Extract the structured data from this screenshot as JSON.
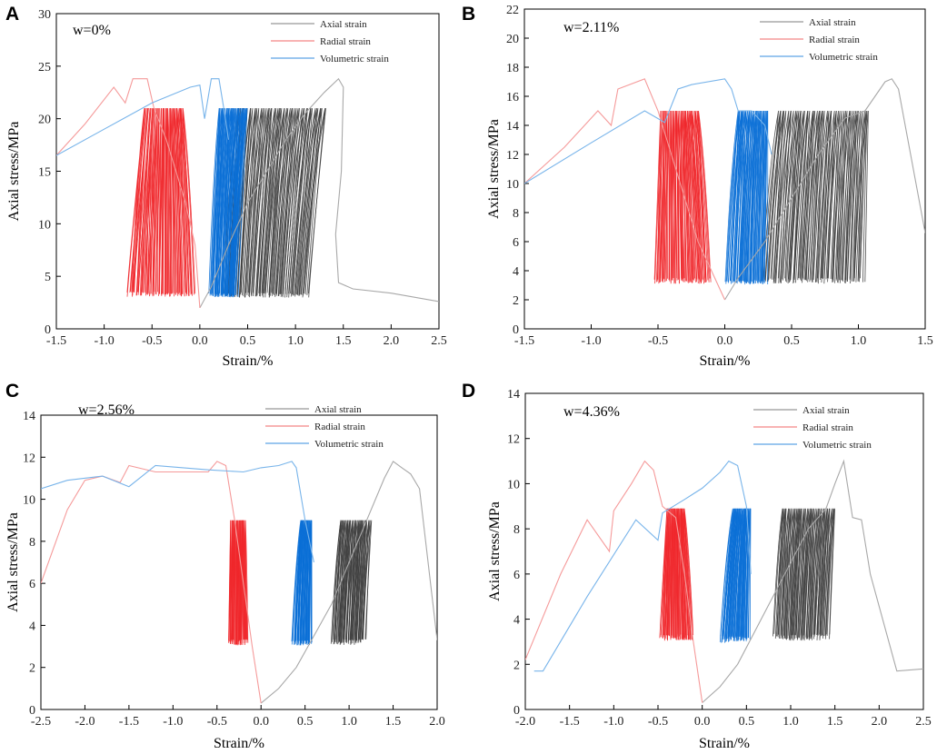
{
  "figure": {
    "x_axis_label": "Strain/%",
    "y_axis_label": "Axial stress/MPa"
  },
  "colors": {
    "axial": "#3c3c3c",
    "radial": "#f0262a",
    "volumetric": "#0a6fd6",
    "axial_light": "#a8a8a8",
    "radial_light": "#f59a9a",
    "volumetric_light": "#78b4ea"
  },
  "chart_data": [
    {
      "panel": "A",
      "type": "line",
      "annotation": "w=0%",
      "xlim": [
        -1.5,
        2.5
      ],
      "ylim": [
        0,
        30
      ],
      "xticks": [
        -1.5,
        -1.0,
        -0.5,
        0.0,
        0.5,
        1.0,
        1.5,
        2.0,
        2.5
      ],
      "yticks": [
        0,
        5,
        10,
        15,
        20,
        25,
        30
      ],
      "legend": [
        "Axial strain",
        "Radial strain",
        "Volumetric strain"
      ],
      "series": [
        {
          "name": "Axial strain",
          "x": [
            0.0,
            0.12,
            0.3,
            0.5,
            0.7,
            0.9,
            1.1,
            1.3,
            1.45,
            1.5,
            1.48,
            1.42,
            1.45,
            1.6,
            2.0,
            2.5
          ],
          "y": [
            2.0,
            4.0,
            8.0,
            12.0,
            15.0,
            18.0,
            20.5,
            22.5,
            23.8,
            23.0,
            15.0,
            9.0,
            4.4,
            3.8,
            3.4,
            2.6
          ]
        },
        {
          "name": "Radial strain",
          "x": [
            -1.5,
            -1.2,
            -0.9,
            -0.78,
            -0.7,
            -0.62,
            -0.55,
            -0.48,
            -0.35,
            -0.25,
            -0.15,
            -0.05,
            0.0
          ],
          "y": [
            16.5,
            19.5,
            23.0,
            21.5,
            23.8,
            23.8,
            23.8,
            21.0,
            18.0,
            15.0,
            12.0,
            8.0,
            2.0
          ]
        },
        {
          "name": "Volumetric strain",
          "x": [
            -1.5,
            -1.0,
            -0.5,
            -0.1,
            0.0,
            0.05,
            0.12,
            0.2,
            0.25,
            0.3
          ],
          "y": [
            16.5,
            19.0,
            21.5,
            23.0,
            23.2,
            20.0,
            23.8,
            23.8,
            21.0,
            18.0
          ]
        }
      ]
    },
    {
      "panel": "B",
      "type": "line",
      "annotation": "w=2.11%",
      "xlim": [
        -1.5,
        1.5
      ],
      "ylim": [
        0,
        22
      ],
      "xticks": [
        -1.5,
        -1.0,
        -0.5,
        0.0,
        0.5,
        1.0,
        1.5
      ],
      "yticks": [
        0,
        2,
        4,
        6,
        8,
        10,
        12,
        14,
        16,
        18,
        20,
        22
      ],
      "legend": [
        "Axial strain",
        "Radial strain",
        "Volumetric strain"
      ],
      "series": [
        {
          "name": "Axial strain",
          "x": [
            0.0,
            0.1,
            0.3,
            0.5,
            0.7,
            0.9,
            1.05,
            1.2,
            1.25,
            1.3,
            1.35,
            1.5
          ],
          "y": [
            2.0,
            3.5,
            6.0,
            9.0,
            12.0,
            14.5,
            15.0,
            17.0,
            17.2,
            16.5,
            14.0,
            6.6
          ]
        },
        {
          "name": "Radial strain",
          "x": [
            -1.5,
            -1.2,
            -0.95,
            -0.85,
            -0.8,
            -0.6,
            -0.5,
            -0.4,
            -0.3,
            -0.2,
            -0.1,
            0.0
          ],
          "y": [
            10.0,
            12.5,
            15.0,
            14.0,
            16.5,
            17.2,
            15.0,
            12.0,
            9.0,
            6.0,
            4.0,
            2.0
          ]
        },
        {
          "name": "Volumetric strain",
          "x": [
            -1.5,
            -1.0,
            -0.6,
            -0.45,
            -0.35,
            -0.25,
            0.0,
            0.05,
            0.1,
            0.2,
            0.3,
            0.35
          ],
          "y": [
            10.0,
            12.8,
            15.0,
            14.2,
            16.5,
            16.8,
            17.2,
            16.5,
            15.0,
            15.0,
            14.0,
            12.0
          ]
        }
      ]
    },
    {
      "panel": "C",
      "type": "line",
      "annotation": "w=2.56%",
      "xlim": [
        -2.5,
        2.0
      ],
      "ylim": [
        0,
        14
      ],
      "xticks": [
        -2.5,
        -2.0,
        -1.5,
        -1.0,
        -0.5,
        0.0,
        0.5,
        1.0,
        1.5,
        2.0
      ],
      "yticks": [
        0,
        2,
        4,
        6,
        8,
        10,
        12,
        14
      ],
      "legend": [
        "Axial strain",
        "Radial strain",
        "Volumetric strain"
      ],
      "series": [
        {
          "name": "Axial strain",
          "x": [
            0.0,
            0.2,
            0.4,
            0.6,
            0.8,
            1.0,
            1.2,
            1.4,
            1.5,
            1.6,
            1.7,
            1.8,
            2.0
          ],
          "y": [
            0.3,
            1.0,
            2.0,
            3.5,
            5.0,
            7.0,
            9.0,
            11.0,
            11.8,
            11.5,
            11.2,
            10.5,
            3.3
          ]
        },
        {
          "name": "Radial strain",
          "x": [
            -2.5,
            -2.2,
            -2.0,
            -1.8,
            -1.6,
            -1.5,
            -1.2,
            -0.6,
            -0.5,
            -0.4,
            -0.3,
            -0.2,
            -0.1,
            0.0
          ],
          "y": [
            6.0,
            9.5,
            10.9,
            11.1,
            10.8,
            11.6,
            11.3,
            11.3,
            11.8,
            11.6,
            9.0,
            6.0,
            3.0,
            0.3
          ]
        },
        {
          "name": "Volumetric strain",
          "x": [
            -2.5,
            -2.2,
            -1.8,
            -1.5,
            -1.2,
            -0.6,
            -0.2,
            0.0,
            0.2,
            0.35,
            0.4,
            0.5,
            0.6
          ],
          "y": [
            10.5,
            10.9,
            11.1,
            10.6,
            11.6,
            11.4,
            11.3,
            11.5,
            11.6,
            11.8,
            11.5,
            9.0,
            7.0
          ]
        }
      ]
    },
    {
      "panel": "D",
      "type": "line",
      "annotation": "w=4.36%",
      "xlim": [
        -2.0,
        2.5
      ],
      "ylim": [
        0,
        14
      ],
      "xticks": [
        -2.0,
        -1.5,
        -1.0,
        -0.5,
        0.0,
        0.5,
        1.0,
        1.5,
        2.0,
        2.5
      ],
      "yticks": [
        0,
        2,
        4,
        6,
        8,
        10,
        12,
        14
      ],
      "legend": [
        "Axial strain",
        "Radial strain",
        "Volumetric strain"
      ],
      "series": [
        {
          "name": "Axial strain",
          "x": [
            0.0,
            0.2,
            0.4,
            0.6,
            0.8,
            1.0,
            1.2,
            1.4,
            1.5,
            1.6,
            1.7,
            1.8,
            1.9,
            2.2,
            2.5
          ],
          "y": [
            0.3,
            1.0,
            2.0,
            3.5,
            5.0,
            6.5,
            8.0,
            8.9,
            10.0,
            11.0,
            8.5,
            8.4,
            6.0,
            1.7,
            1.8
          ]
        },
        {
          "name": "Radial strain",
          "x": [
            -2.0,
            -1.6,
            -1.3,
            -1.05,
            -1.0,
            -0.8,
            -0.65,
            -0.55,
            -0.45,
            -0.3,
            -0.2,
            -0.1,
            0.0
          ],
          "y": [
            2.2,
            6.0,
            8.4,
            7.0,
            8.8,
            10.0,
            11.0,
            10.6,
            9.0,
            8.5,
            6.0,
            3.0,
            0.3
          ]
        },
        {
          "name": "Volumetric strain",
          "x": [
            -1.9,
            -1.8,
            -1.3,
            -0.75,
            -0.5,
            -0.45,
            -0.2,
            0.0,
            0.2,
            0.3,
            0.4,
            0.5,
            0.55
          ],
          "y": [
            1.7,
            1.7,
            5.0,
            8.4,
            7.5,
            8.7,
            9.3,
            9.8,
            10.5,
            11.0,
            10.8,
            9.0,
            6.0
          ]
        }
      ]
    }
  ]
}
